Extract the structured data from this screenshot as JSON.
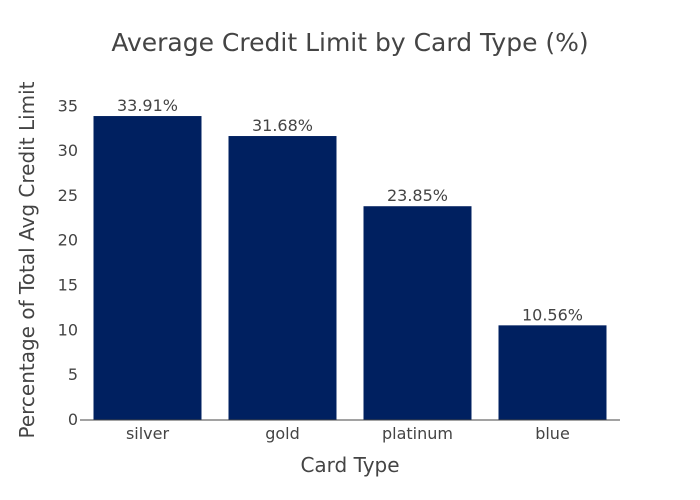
{
  "chart_data": {
    "type": "bar",
    "title": "Average Credit Limit by Card Type (%)",
    "xlabel": "Card Type",
    "ylabel": "Percentage of Total Avg Credit Limit",
    "categories": [
      "silver",
      "gold",
      "platinum",
      "blue"
    ],
    "values": [
      33.91,
      31.68,
      23.85,
      10.56
    ],
    "data_labels": [
      "33.91%",
      "31.68%",
      "23.85%",
      "10.56%"
    ],
    "yticks": [
      0,
      5,
      10,
      15,
      20,
      25,
      30,
      35
    ],
    "ylim": [
      0,
      35.7
    ],
    "grid": false,
    "bar_color": "#002060"
  }
}
